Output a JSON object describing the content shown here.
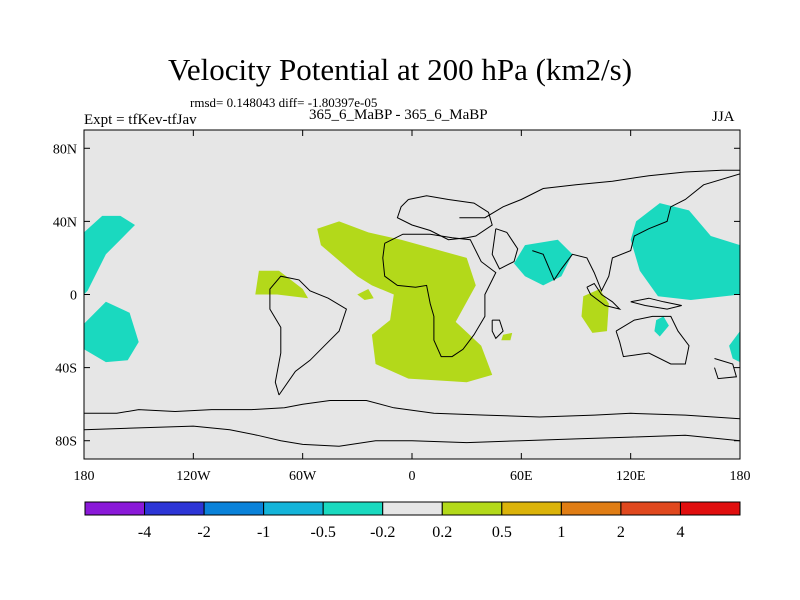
{
  "header": {
    "title": "Velocity Potential at 200 hPa (km2/s)",
    "stats": "rmsd= 0.148043 diff= -1.80397e-05",
    "experiment": "Expt = tfKev-tfJav",
    "cases": "365_6_MaBP - 365_6_MaBP",
    "season": "JJA"
  },
  "chart_data": {
    "type": "heatmap",
    "title": "Velocity Potential at 200 hPa (km2/s)",
    "units": "km2/s",
    "xlim": [
      -180,
      180
    ],
    "ylim": [
      -90,
      90
    ],
    "x_ticks": [
      {
        "value": -180,
        "label": "180"
      },
      {
        "value": -120,
        "label": "120W"
      },
      {
        "value": -60,
        "label": "60W"
      },
      {
        "value": 0,
        "label": "0"
      },
      {
        "value": 60,
        "label": "60E"
      },
      {
        "value": 120,
        "label": "120E"
      },
      {
        "value": 180,
        "label": "180"
      }
    ],
    "y_ticks": [
      {
        "value": 80,
        "label": "80N"
      },
      {
        "value": 40,
        "label": "40N"
      },
      {
        "value": 0,
        "label": "0"
      },
      {
        "value": -40,
        "label": "40S"
      },
      {
        "value": -80,
        "label": "80S"
      }
    ],
    "background_color": "#e6e6e6",
    "colorbar": {
      "colors": [
        "#8a19d8",
        "#2d35d6",
        "#0a82d9",
        "#14b4d9",
        "#1ad9bf",
        "#e6e6e6",
        "#b3d91a",
        "#dbb30a",
        "#e07d14",
        "#e0481e",
        "#e00e0e"
      ],
      "tick_labels": [
        "-4",
        "-2",
        "-1",
        "-0.5",
        "-0.2",
        "0.2",
        "0.5",
        "1",
        "2",
        "4"
      ]
    },
    "regions": [
      {
        "label": "-0.5 to -0.2",
        "color": "#1ad9bf",
        "points": [
          [
            -180,
            34
          ],
          [
            -170,
            43
          ],
          [
            -160,
            43
          ],
          [
            -152,
            38
          ],
          [
            -160,
            30
          ],
          [
            -168,
            22
          ],
          [
            -178,
            2
          ],
          [
            -180,
            0
          ]
        ]
      },
      {
        "label": "-0.5 to -0.2",
        "color": "#1ad9bf",
        "points": [
          [
            -180,
            -16
          ],
          [
            -168,
            -4
          ],
          [
            -155,
            -10
          ],
          [
            -150,
            -26
          ],
          [
            -156,
            -36
          ],
          [
            -168,
            -37
          ],
          [
            -180,
            -30
          ]
        ]
      },
      {
        "label": "0.2 to 0.5",
        "color": "#b3d91a",
        "points": [
          [
            -52,
            36
          ],
          [
            -40,
            40
          ],
          [
            -24,
            34
          ],
          [
            -6,
            30
          ],
          [
            30,
            20
          ],
          [
            35,
            5
          ],
          [
            24,
            -15
          ],
          [
            38,
            -28
          ],
          [
            44,
            -44
          ],
          [
            30,
            -48
          ],
          [
            -2,
            -46
          ],
          [
            -20,
            -38
          ],
          [
            -22,
            -22
          ],
          [
            -12,
            -14
          ],
          [
            -10,
            0
          ],
          [
            -22,
            5
          ],
          [
            -30,
            10
          ],
          [
            -50,
            27
          ]
        ]
      },
      {
        "label": "0.2 to 0.5",
        "color": "#b3d91a",
        "points": [
          [
            -84,
            13
          ],
          [
            -73,
            13
          ],
          [
            -60,
            3
          ],
          [
            -57,
            -2
          ],
          [
            -74,
            0
          ],
          [
            -86,
            0
          ]
        ]
      },
      {
        "label": "0.2 to 0.5",
        "color": "#b3d91a",
        "points": [
          [
            -30,
            0
          ],
          [
            -24,
            3
          ],
          [
            -21,
            -2
          ],
          [
            -26,
            -3
          ]
        ]
      },
      {
        "label": "0.2 to 0.5",
        "color": "#b3d91a",
        "points": [
          [
            94,
            -1
          ],
          [
            103,
            3
          ],
          [
            108,
            -5
          ],
          [
            107,
            -20
          ],
          [
            99,
            -21
          ],
          [
            93,
            -12
          ]
        ]
      },
      {
        "label": "0.2 to 0.5",
        "color": "#b3d91a",
        "points": [
          [
            50,
            -22
          ],
          [
            55,
            -21
          ],
          [
            54,
            -25
          ],
          [
            49,
            -25
          ]
        ]
      },
      {
        "label": "-0.5 to -0.2",
        "color": "#1ad9bf",
        "points": [
          [
            62,
            27
          ],
          [
            80,
            30
          ],
          [
            88,
            22
          ],
          [
            82,
            10
          ],
          [
            72,
            5
          ],
          [
            62,
            10
          ],
          [
            56,
            17
          ]
        ]
      },
      {
        "label": "-0.5 to -0.2",
        "color": "#1ad9bf",
        "points": [
          [
            123,
            40
          ],
          [
            136,
            50
          ],
          [
            152,
            46
          ],
          [
            164,
            32
          ],
          [
            180,
            27
          ],
          [
            180,
            0
          ],
          [
            153,
            -3
          ],
          [
            135,
            -1
          ],
          [
            125,
            13
          ],
          [
            120,
            30
          ]
        ]
      },
      {
        "label": "-0.5 to -0.2",
        "color": "#1ad9bf",
        "points": [
          [
            134,
            -14
          ],
          [
            138,
            -12
          ],
          [
            141,
            -17
          ],
          [
            136,
            -23
          ],
          [
            133,
            -20
          ]
        ]
      },
      {
        "label": "-0.5 to -0.2",
        "color": "#1ad9bf",
        "points": [
          [
            180,
            -20
          ],
          [
            174,
            -28
          ],
          [
            176,
            -35
          ],
          [
            180,
            -37
          ]
        ]
      }
    ],
    "outlines": [
      [
        [
          -180,
          -65
        ],
        [
          -162,
          -65
        ],
        [
          -150,
          -63
        ],
        [
          -130,
          -64
        ],
        [
          -110,
          -63
        ],
        [
          -88,
          -63
        ],
        [
          -70,
          -62
        ],
        [
          -60,
          -60
        ],
        [
          -45,
          -58
        ],
        [
          -25,
          -58
        ],
        [
          -10,
          -62
        ],
        [
          12,
          -65
        ],
        [
          40,
          -66
        ],
        [
          70,
          -67
        ],
        [
          100,
          -66
        ],
        [
          120,
          -65
        ],
        [
          150,
          -66
        ],
        [
          180,
          -68
        ]
      ],
      [
        [
          -180,
          -74
        ],
        [
          -150,
          -73
        ],
        [
          -120,
          -72
        ],
        [
          -100,
          -74
        ],
        [
          -85,
          -77
        ],
        [
          -72,
          -80
        ],
        [
          -60,
          -82
        ],
        [
          -40,
          -83
        ],
        [
          -20,
          -80
        ],
        [
          0,
          -80
        ],
        [
          30,
          -81
        ],
        [
          60,
          -80
        ],
        [
          90,
          -79
        ],
        [
          120,
          -78
        ],
        [
          150,
          -77
        ],
        [
          180,
          -80
        ]
      ],
      [
        [
          -73,
          -55
        ],
        [
          -64,
          -42
        ],
        [
          -56,
          -36
        ],
        [
          -48,
          -28
        ],
        [
          -40,
          -20
        ],
        [
          -36,
          -8
        ],
        [
          -46,
          -2
        ],
        [
          -56,
          2
        ],
        [
          -62,
          8
        ],
        [
          -72,
          10
        ],
        [
          -78,
          3
        ],
        [
          -78,
          -8
        ],
        [
          -72,
          -18
        ],
        [
          -72,
          -32
        ],
        [
          -75,
          -48
        ],
        [
          -73,
          -55
        ]
      ],
      [
        [
          -2,
          52
        ],
        [
          8,
          54
        ],
        [
          20,
          52
        ],
        [
          34,
          50
        ],
        [
          42,
          45
        ],
        [
          44,
          38
        ],
        [
          35,
          32
        ],
        [
          30,
          31
        ],
        [
          20,
          30
        ],
        [
          10,
          35
        ],
        [
          0,
          38
        ],
        [
          -8,
          42
        ],
        [
          -6,
          48
        ],
        [
          -2,
          52
        ]
      ],
      [
        [
          -15,
          28
        ],
        [
          -16,
          20
        ],
        [
          -15,
          10
        ],
        [
          -8,
          5
        ],
        [
          2,
          4
        ],
        [
          8,
          5
        ],
        [
          10,
          -5
        ],
        [
          12,
          -12
        ],
        [
          12,
          -25
        ],
        [
          16,
          -34
        ],
        [
          22,
          -34
        ],
        [
          28,
          -30
        ],
        [
          34,
          -22
        ],
        [
          40,
          -12
        ],
        [
          40,
          0
        ],
        [
          44,
          8
        ],
        [
          46,
          12
        ],
        [
          38,
          18
        ],
        [
          32,
          30
        ],
        [
          22,
          31
        ],
        [
          10,
          33
        ],
        [
          -5,
          33
        ],
        [
          -15,
          28
        ]
      ],
      [
        [
          46,
          36
        ],
        [
          52,
          34
        ],
        [
          58,
          25
        ],
        [
          56,
          18
        ],
        [
          48,
          14
        ],
        [
          44,
          22
        ],
        [
          46,
          36
        ]
      ],
      [
        [
          66,
          24
        ],
        [
          72,
          22
        ],
        [
          78,
          8
        ],
        [
          82,
          14
        ],
        [
          88,
          22
        ],
        [
          96,
          20
        ],
        [
          100,
          12
        ],
        [
          104,
          2
        ],
        [
          108,
          10
        ],
        [
          110,
          20
        ],
        [
          120,
          24
        ],
        [
          122,
          32
        ],
        [
          130,
          36
        ],
        [
          140,
          40
        ],
        [
          142,
          48
        ],
        [
          150,
          52
        ],
        [
          160,
          60
        ],
        [
          180,
          66
        ]
      ],
      [
        [
          26,
          42
        ],
        [
          40,
          42
        ],
        [
          50,
          48
        ],
        [
          60,
          52
        ],
        [
          72,
          58
        ],
        [
          90,
          60
        ],
        [
          110,
          62
        ],
        [
          130,
          65
        ],
        [
          150,
          67
        ],
        [
          170,
          68
        ],
        [
          180,
          68
        ]
      ],
      [
        [
          112,
          -20
        ],
        [
          122,
          -14
        ],
        [
          132,
          -12
        ],
        [
          142,
          -12
        ],
        [
          146,
          -20
        ],
        [
          152,
          -28
        ],
        [
          150,
          -38
        ],
        [
          142,
          -38
        ],
        [
          130,
          -32
        ],
        [
          116,
          -34
        ],
        [
          114,
          -26
        ],
        [
          112,
          -20
        ]
      ],
      [
        [
          166,
          -35
        ],
        [
          176,
          -38
        ],
        [
          178,
          -45
        ],
        [
          168,
          -46
        ],
        [
          166,
          -40
        ]
      ],
      [
        [
          44,
          -14
        ],
        [
          48,
          -14
        ],
        [
          50,
          -20
        ],
        [
          46,
          -24
        ],
        [
          44,
          -20
        ],
        [
          44,
          -14
        ]
      ],
      [
        [
          96,
          4
        ],
        [
          100,
          6
        ],
        [
          104,
          0
        ],
        [
          110,
          -4
        ],
        [
          114,
          -8
        ],
        [
          106,
          -6
        ],
        [
          98,
          0
        ],
        [
          96,
          4
        ]
      ],
      [
        [
          120,
          -4
        ],
        [
          130,
          -2
        ],
        [
          138,
          -4
        ],
        [
          148,
          -6
        ],
        [
          140,
          -8
        ],
        [
          128,
          -6
        ],
        [
          120,
          -4
        ]
      ]
    ]
  }
}
